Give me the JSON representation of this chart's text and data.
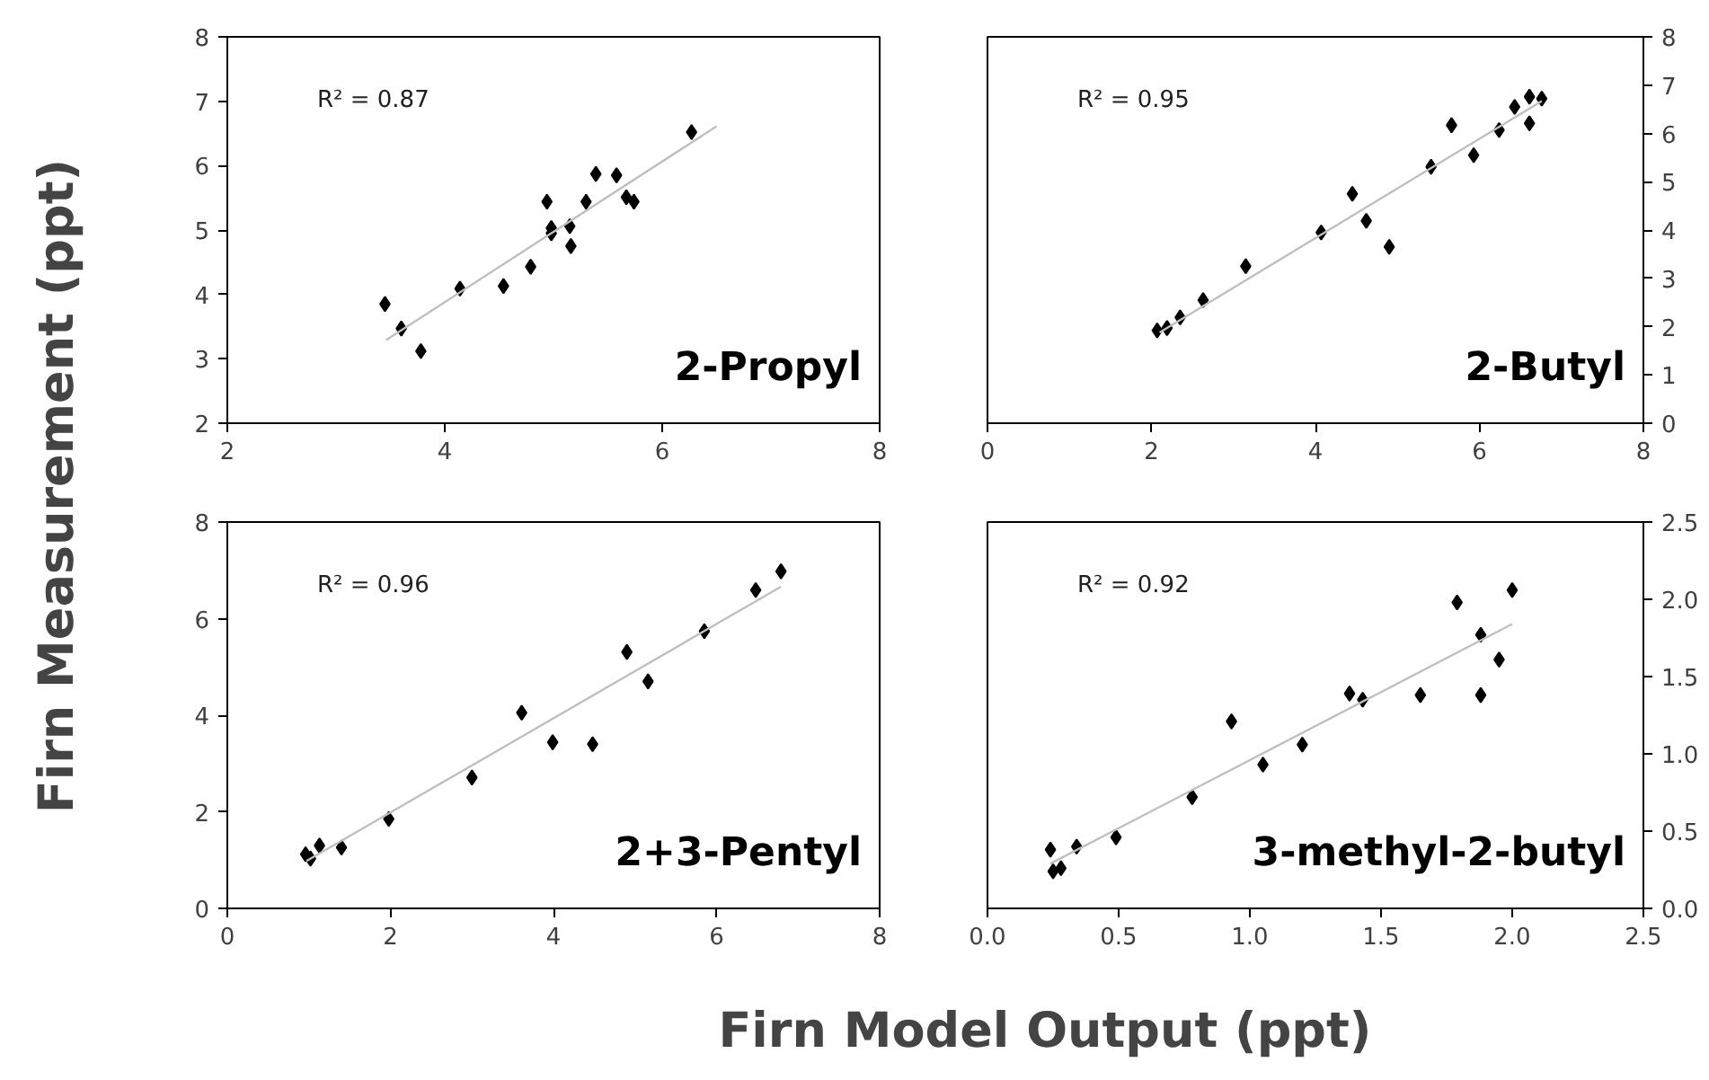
{
  "chart_data": [
    {
      "type": "scatter",
      "title": "2-Propyl",
      "ylabel": "Firn Measurement (ppt)",
      "annotations": [
        "R² = 0.87"
      ],
      "marker": "diamond",
      "grid": false,
      "xlim": [
        2,
        8
      ],
      "ylim": [
        2,
        8
      ],
      "xticks": [
        2,
        4,
        6,
        8
      ],
      "yticks": [
        2,
        3,
        4,
        5,
        6,
        7,
        8
      ],
      "series": [
        {
          "color": "#000000",
          "x": [
            3.45,
            3.6,
            3.78,
            4.14,
            4.54,
            4.79,
            4.94,
            4.98,
            4.98,
            5.15,
            5.16,
            5.3,
            5.39,
            5.58,
            5.67,
            5.74,
            6.27
          ],
          "values": [
            3.85,
            3.47,
            3.12,
            4.09,
            4.13,
            4.43,
            5.44,
            5.03,
            4.95,
            5.06,
            4.75,
            5.44,
            5.87,
            5.85,
            5.51,
            5.44,
            6.52
          ]
        },
        {
          "type": "line",
          "marker": "none",
          "color": "#bfbfbf",
          "x": [
            3.46,
            6.5
          ],
          "values": [
            3.29,
            6.61
          ]
        }
      ]
    },
    {
      "type": "scatter",
      "title": "2-Butyl",
      "annotations": [
        "R² = 0.95"
      ],
      "marker": "diamond",
      "grid": false,
      "xlim": [
        0,
        8
      ],
      "y2lim": [
        0,
        8
      ],
      "xticks": [
        0,
        2,
        4,
        6,
        8
      ],
      "y2ticks": [
        0,
        1,
        2,
        3,
        4,
        5,
        6,
        7,
        8
      ],
      "series": [
        {
          "axis": "y2",
          "color": "#000000",
          "x": [
            2.07,
            2.19,
            2.35,
            2.63,
            3.15,
            4.07,
            4.45,
            4.62,
            4.9,
            5.41,
            5.66,
            5.93,
            6.24,
            6.43,
            6.61,
            6.61,
            6.76
          ],
          "values": [
            1.92,
            1.97,
            2.19,
            2.55,
            3.25,
            3.95,
            4.75,
            4.19,
            3.65,
            5.31,
            6.17,
            5.55,
            6.07,
            6.55,
            6.76,
            6.21,
            6.72
          ]
        },
        {
          "axis": "y2",
          "type": "line",
          "marker": "none",
          "color": "#bfbfbf",
          "x": [
            2.1,
            6.76
          ],
          "values": [
            1.88,
            6.67
          ]
        }
      ]
    },
    {
      "type": "scatter",
      "title": "2+3-Pentyl",
      "xlabel": "Firn Model Output (ppt)",
      "annotations": [
        "R² = 0.96"
      ],
      "marker": "diamond",
      "grid": false,
      "xlim": [
        0,
        8
      ],
      "ylim": [
        0,
        8
      ],
      "xticks": [
        0,
        2,
        4,
        6,
        8
      ],
      "yticks": [
        0,
        2,
        4,
        6,
        8
      ],
      "series": [
        {
          "color": "#000000",
          "x": [
            0.96,
            1.02,
            1.13,
            1.4,
            1.98,
            3.0,
            3.61,
            3.99,
            4.48,
            4.9,
            5.16,
            5.85,
            6.48,
            6.79
          ],
          "values": [
            1.12,
            1.03,
            1.3,
            1.26,
            1.85,
            2.71,
            4.05,
            3.44,
            3.4,
            5.31,
            4.7,
            5.74,
            6.59,
            6.98
          ]
        },
        {
          "type": "line",
          "marker": "none",
          "color": "#bfbfbf",
          "x": [
            0.97,
            6.79
          ],
          "values": [
            0.98,
            6.66
          ]
        }
      ]
    },
    {
      "type": "scatter",
      "title": "3-methyl-2-butyl",
      "annotations": [
        "R² = 0.92"
      ],
      "marker": "diamond",
      "grid": false,
      "xlim": [
        0,
        2.5
      ],
      "y2lim": [
        0,
        2.5
      ],
      "xticks": [
        {
          "value": 0,
          "label": "0.0"
        },
        0.5,
        {
          "value": 1,
          "label": "1.0"
        },
        1.5,
        {
          "value": 2,
          "label": "2.0"
        },
        2.5
      ],
      "y2ticks": [
        {
          "value": 0,
          "label": "0.0"
        },
        0.5,
        {
          "value": 1,
          "label": "1.0"
        },
        1.5,
        {
          "value": 2,
          "label": "2.0"
        },
        2.5
      ],
      "series": [
        {
          "axis": "y2",
          "color": "#000000",
          "x": [
            0.24,
            0.25,
            0.28,
            0.34,
            0.49,
            0.78,
            0.93,
            1.05,
            1.2,
            1.38,
            1.43,
            1.65,
            1.79,
            1.88,
            1.88,
            1.95,
            2.0
          ],
          "values": [
            0.38,
            0.24,
            0.26,
            0.4,
            0.46,
            0.72,
            1.21,
            0.93,
            1.06,
            1.39,
            1.35,
            1.38,
            1.98,
            1.77,
            1.38,
            1.61,
            2.06
          ]
        },
        {
          "axis": "y2",
          "type": "line",
          "marker": "none",
          "color": "#bfbfbf",
          "x": [
            0.24,
            2.0
          ],
          "values": [
            0.29,
            1.84
          ]
        }
      ]
    }
  ]
}
